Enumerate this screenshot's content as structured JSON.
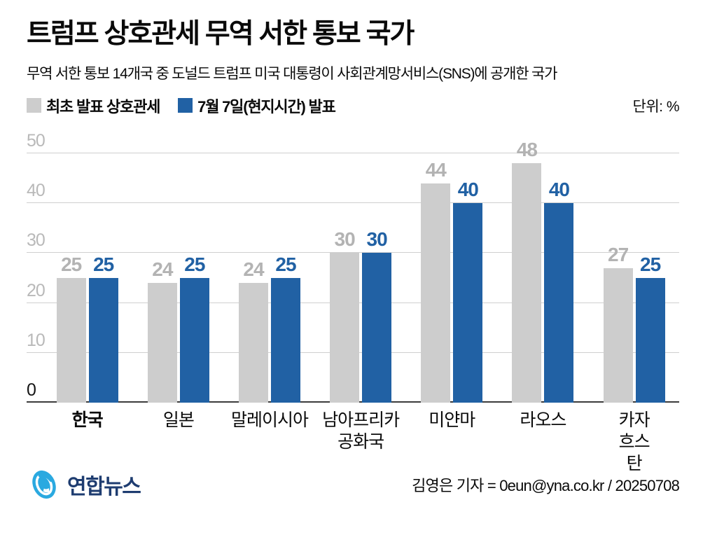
{
  "header": {
    "title": "트럼프 상호관세 무역 서한 통보 국가",
    "subtitle": "무역 서한 통보 14개국 중 도널드 트럼프 미국 대통령이 사회관계망서비스(SNS)에 공개한 국가",
    "unit_label": "단위: %"
  },
  "legend": [
    {
      "label": "최초 발표 상호관세",
      "color": "#cdcdcd"
    },
    {
      "label": "7월 7일(현지시간) 발표",
      "color": "#2161a4"
    }
  ],
  "chart_data": {
    "type": "bar",
    "categories": [
      {
        "label": "한국",
        "bold": true
      },
      {
        "label": "일본",
        "bold": false
      },
      {
        "label": "말레이시아",
        "bold": false
      },
      {
        "label": "남아프리카\n공화국",
        "bold": false
      },
      {
        "label": "미얀마",
        "bold": false
      },
      {
        "label": "라오스",
        "bold": false
      },
      {
        "label": "카자흐스탄",
        "bold": false
      }
    ],
    "series": [
      {
        "name": "최초 발표 상호관세",
        "color": "#cdcdcd",
        "label_color": "#b3b3b3",
        "values": [
          25,
          24,
          24,
          30,
          44,
          48,
          27
        ]
      },
      {
        "name": "7월 7일(현지시간) 발표",
        "color": "#2161a4",
        "label_color": "#2161a4",
        "values": [
          25,
          25,
          25,
          30,
          40,
          40,
          25
        ]
      }
    ],
    "ylim": [
      0,
      50
    ],
    "yticks": [
      0,
      10,
      20,
      30,
      40,
      50
    ],
    "grid": true,
    "legend_position": "top",
    "unit": "%"
  },
  "footer": {
    "brand_name": "연합뉴스",
    "credit": "김영은 기자 = 0eun@yna.co.kr / 20250708"
  },
  "colors": {
    "bar_gray": "#cdcdcd",
    "bar_blue": "#2161a4",
    "gridline": "#cfcfcf",
    "axis_line": "#3c3c3c",
    "tick_gray": "#b9b9b9",
    "logo_blue": "#2aa9e0",
    "logo_navy": "#1e3c70"
  }
}
